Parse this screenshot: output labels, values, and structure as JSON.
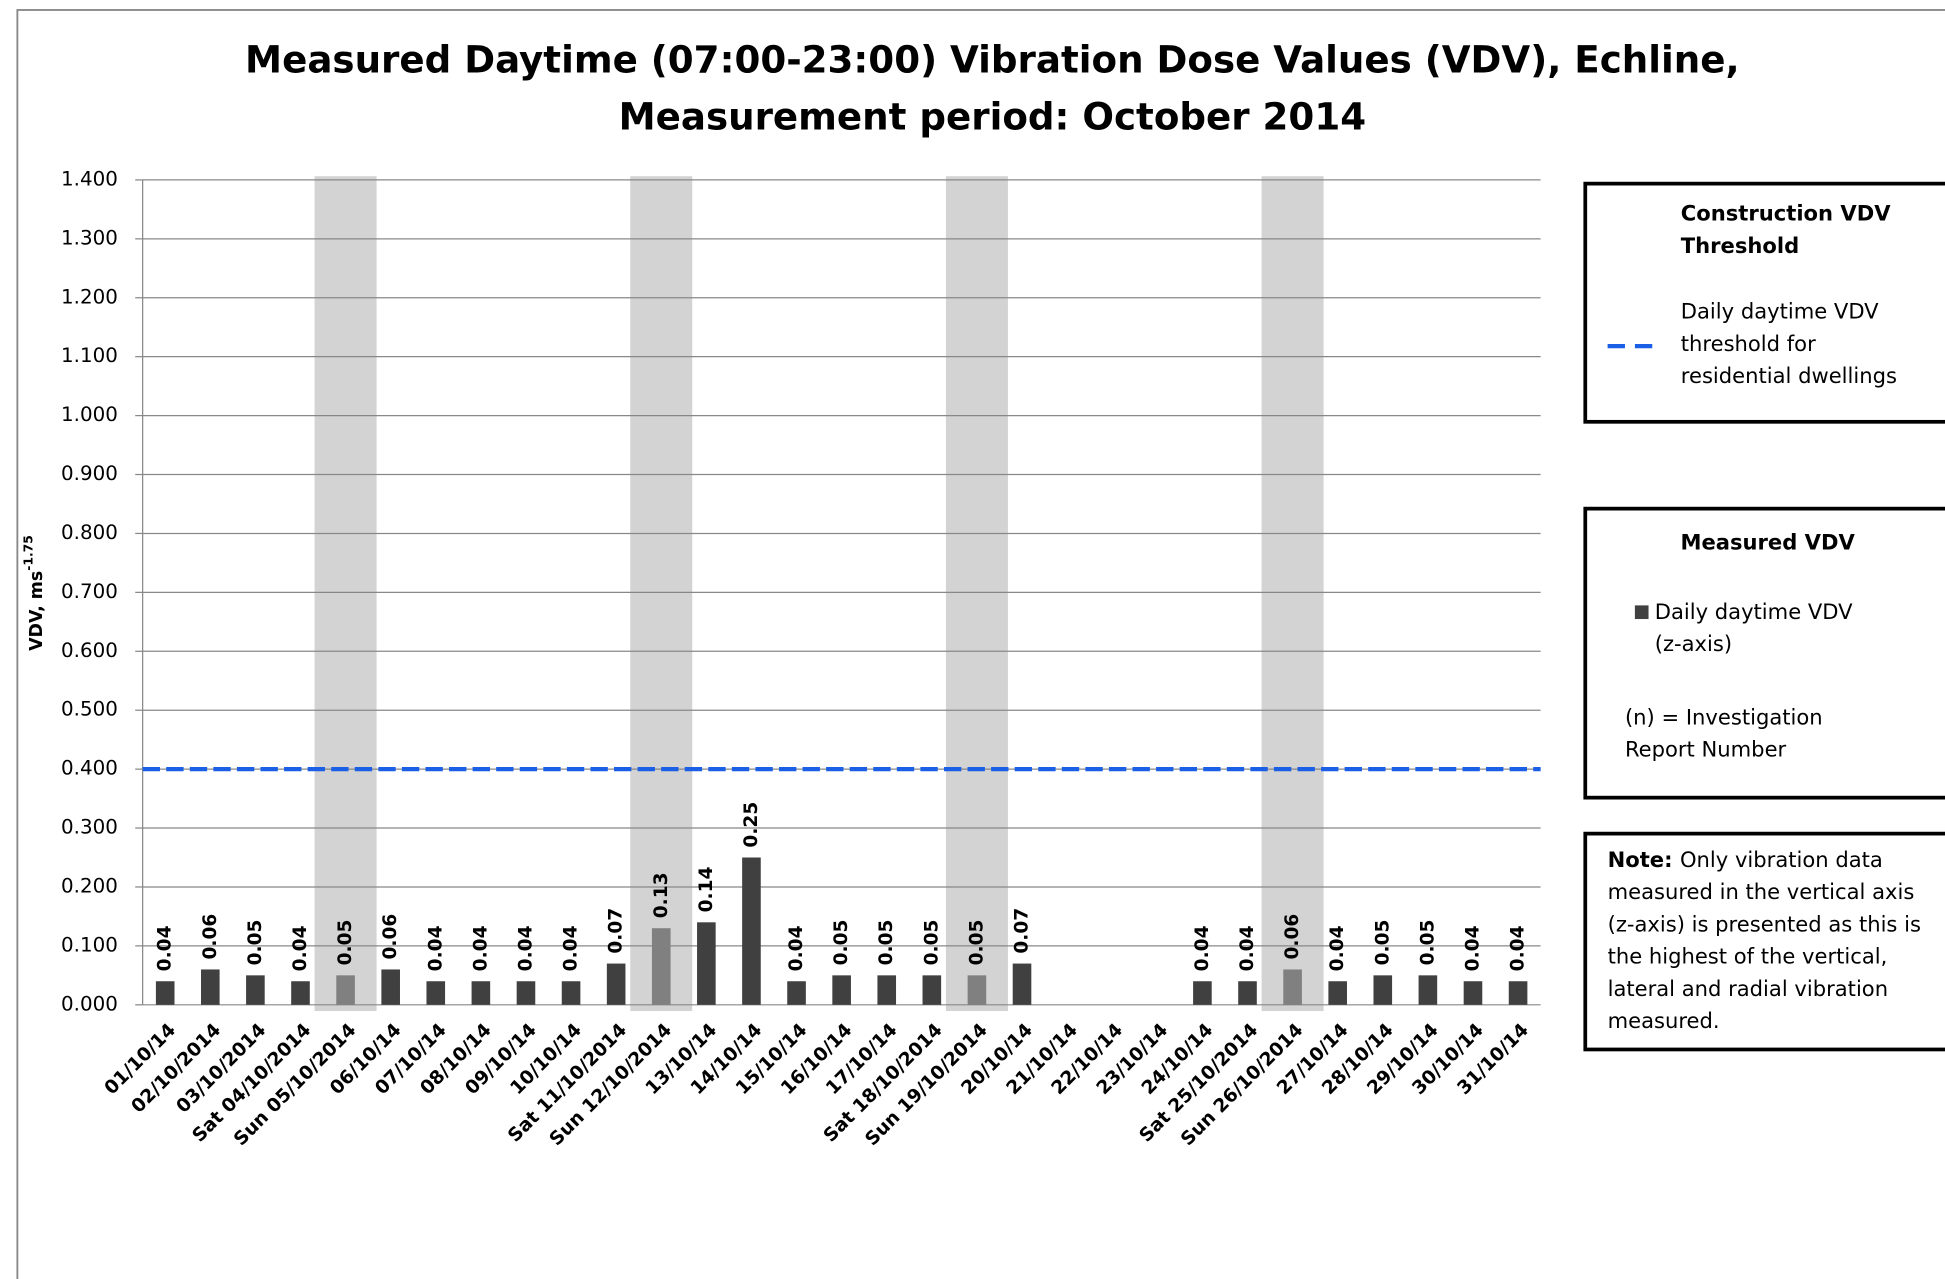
{
  "chart_data": {
    "type": "bar",
    "title": [
      "Measured Daytime (07:00-23:00) Vibration Dose Values (VDV), Echline,",
      "Measurement period: October 2014"
    ],
    "ylabel": "VDV, ms",
    "ylabel_sup": "-1.75",
    "categories": [
      "01/10/14",
      "02/10/2014",
      "03/10/2014",
      "Sat 04/10/2014",
      "Sun 05/10/2014",
      "06/10/14",
      "07/10/14",
      "08/10/14",
      "09/10/14",
      "10/10/14",
      "Sat 11/10/2014",
      "Sun 12/10/2014",
      "13/10/14",
      "14/10/14",
      "15/10/14",
      "16/10/14",
      "17/10/14",
      "Sat 18/10/2014",
      "Sun 19/10/2014",
      "20/10/14",
      "21/10/14",
      "22/10/14",
      "23/10/14",
      "24/10/14",
      "Sat 25/10/2014",
      "Sun 26/10/2014",
      "27/10/14",
      "28/10/14",
      "29/10/14",
      "30/10/14",
      "31/10/14"
    ],
    "values": [
      0.04,
      0.06,
      0.05,
      0.04,
      0.05,
      0.06,
      0.04,
      0.04,
      0.04,
      0.04,
      0.07,
      0.13,
      0.14,
      0.25,
      0.04,
      0.05,
      0.05,
      0.05,
      0.05,
      0.07,
      null,
      null,
      null,
      0.04,
      0.04,
      0.06,
      0.04,
      0.05,
      0.05,
      0.04,
      0.04
    ],
    "color": "#404040",
    "label_color": "#2323c8",
    "highlight": [
      4,
      11,
      18,
      25
    ],
    "highlight_color": "#808080",
    "highlight_label_color": "#7272c8",
    "band_color": "#d3d3d3",
    "ylim": [
      0,
      1.4
    ],
    "yticks": [
      {
        "value": 0,
        "label": "0.000"
      },
      {
        "value": 0.1,
        "label": "0.100"
      },
      {
        "value": 0.2,
        "label": "0.200"
      },
      {
        "value": 0.3,
        "label": "0.300"
      },
      {
        "value": 0.4,
        "label": "0.400"
      },
      {
        "value": 0.5,
        "label": "0.500"
      },
      {
        "value": 0.6,
        "label": "0.600"
      },
      {
        "value": 0.7,
        "label": "0.700"
      },
      {
        "value": 0.8,
        "label": "0.800"
      },
      {
        "value": 0.9,
        "label": "0.900"
      },
      {
        "value": 1.0,
        "label": "1.000"
      },
      {
        "value": 1.1,
        "label": "1.100"
      },
      {
        "value": 1.2,
        "label": "1.200"
      },
      {
        "value": 1.3,
        "label": "1.300"
      },
      {
        "value": 1.4,
        "label": "1.400"
      }
    ],
    "grid": true,
    "threshold": {
      "value": 0.4,
      "color": "#1a5fe6"
    },
    "legend": {
      "threshold_title": [
        "Construction VDV",
        "Threshold"
      ],
      "threshold_label": [
        "Daily daytime VDV",
        "threshold for",
        "residential dwellings"
      ],
      "measured_title": "Measured VDV",
      "measured_label": [
        "Daily daytime VDV",
        "(z-axis)"
      ],
      "investigation": [
        "(n) = Investigation",
        "Report Number"
      ],
      "note_label": "Note:",
      "note_lines": [
        "Only vibration data",
        "measured in the vertical axis",
        "(z-axis) is presented as this is",
        "the highest of the vertical,",
        "lateral and radial vibration",
        "measured."
      ]
    }
  }
}
